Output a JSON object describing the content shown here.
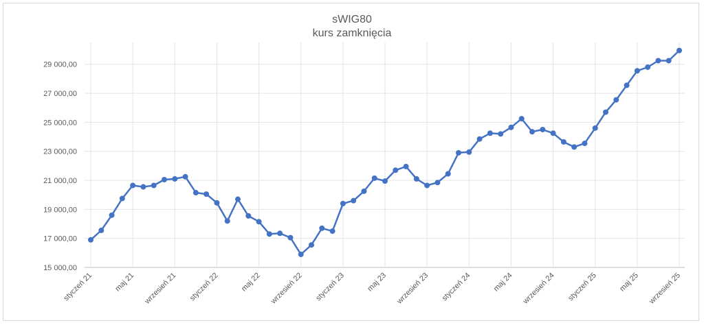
{
  "chart_data": {
    "type": "line",
    "title": "sWIG80",
    "subtitle": "kurs zamknięcia",
    "xlabel": "",
    "ylabel": "",
    "ylim": [
      15000,
      30500
    ],
    "yticks": [
      15000,
      17000,
      19000,
      21000,
      23000,
      25000,
      27000,
      29000
    ],
    "ytick_labels": [
      "15 000,00",
      "17 000,00",
      "19 000,00",
      "21 000,00",
      "23 000,00",
      "25 000,00",
      "27 000,00",
      "29 000,00"
    ],
    "x_tick_labels": [
      {
        "index": 0,
        "label": "styczeń 21"
      },
      {
        "index": 4,
        "label": "maj 21"
      },
      {
        "index": 8,
        "label": "wrzesień 21"
      },
      {
        "index": 12,
        "label": "styczeń 22"
      },
      {
        "index": 16,
        "label": "maj 22"
      },
      {
        "index": 20,
        "label": "wrzesień 22"
      },
      {
        "index": 24,
        "label": "styczeń 23"
      },
      {
        "index": 28,
        "label": "maj 23"
      },
      {
        "index": 32,
        "label": "wrzesień 23"
      },
      {
        "index": 36,
        "label": "styczeń 24"
      },
      {
        "index": 40,
        "label": "maj 24"
      },
      {
        "index": 44,
        "label": "wrzesień 24"
      },
      {
        "index": 48,
        "label": "styczeń 25"
      },
      {
        "index": 52,
        "label": "maj 25"
      },
      {
        "index": 56,
        "label": "wrzesień 25"
      }
    ],
    "grid": true,
    "legend": "none",
    "series": [
      {
        "color": "#4472c4",
        "values": [
          16900,
          17550,
          18600,
          19750,
          20650,
          20550,
          20650,
          21050,
          21100,
          21250,
          20150,
          20050,
          19450,
          18200,
          19700,
          18550,
          18150,
          17300,
          17350,
          17050,
          15900,
          16550,
          17700,
          17500,
          19400,
          19600,
          20250,
          21150,
          20950,
          21700,
          21950,
          21100,
          20650,
          20850,
          21450,
          22900,
          22950,
          23850,
          24250,
          24200,
          24650,
          25250,
          24350,
          24500,
          24250,
          23650,
          23300,
          23550,
          24600,
          25700,
          26550,
          27550,
          28550,
          28800,
          29250,
          29250,
          29950
        ]
      }
    ]
  }
}
